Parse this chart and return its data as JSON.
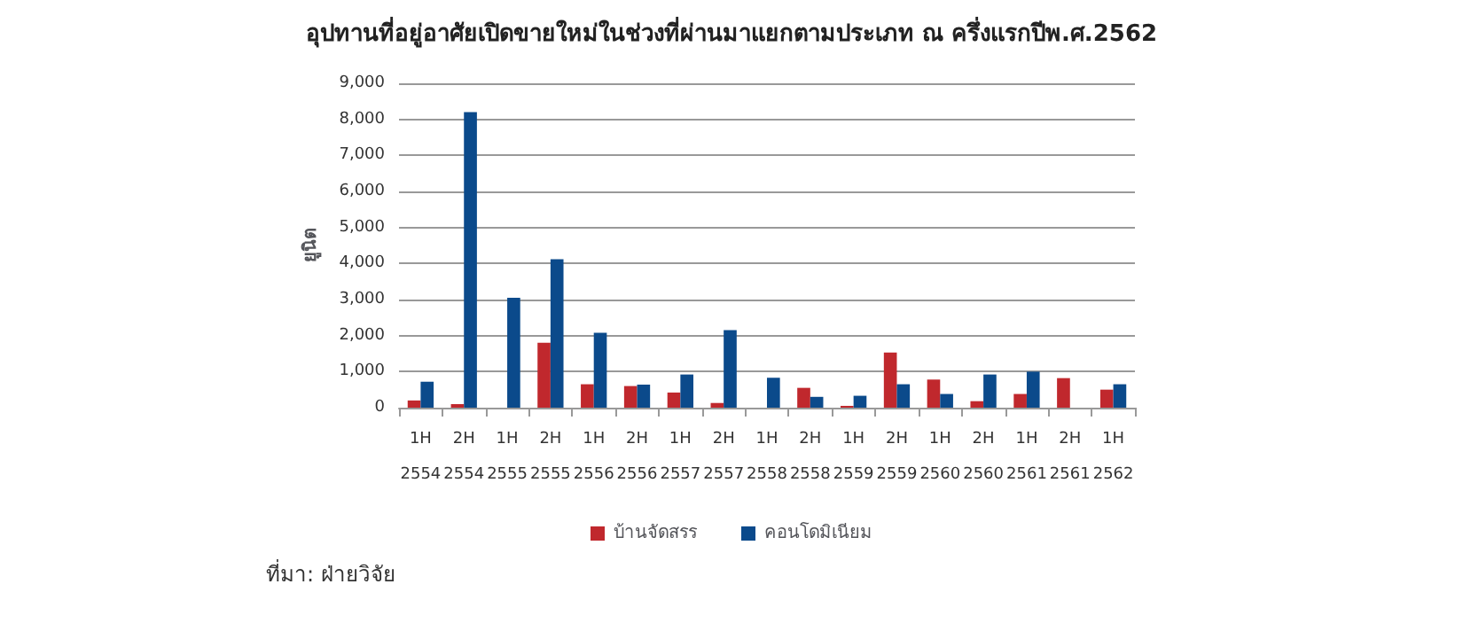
{
  "chart_data": {
    "type": "bar",
    "title": "อุปทานที่อยู่อาศัยเปิดขายใหม่ในช่วงที่ผ่านมาแยกตามประเภท ณ ครึ่งแรกปีพ.ศ.2562",
    "ylabel": "ยูนิต",
    "categories": [
      "1H\n2554",
      "2H\n2554",
      "1H\n2555",
      "2H\n2555",
      "1H\n2556",
      "2H\n2556",
      "1H\n2557",
      "2H\n2557",
      "1H\n2558",
      "2H\n2558",
      "1H\n2559",
      "2H\n2559",
      "1H\n2560",
      "2H\n2560",
      "1H\n2561",
      "2H\n2561",
      "1H\n2562"
    ],
    "series": [
      {
        "name": "บ้านจัดสรร",
        "color": "#c0282d",
        "values": [
          200,
          100,
          0,
          1800,
          650,
          600,
          420,
          130,
          0,
          550,
          50,
          1530,
          780,
          180,
          380,
          820,
          500
        ]
      },
      {
        "name": "คอนโดมิเนียม",
        "color": "#0b4a8b",
        "values": [
          720,
          8200,
          3050,
          4120,
          2080,
          640,
          920,
          2150,
          830,
          300,
          330,
          650,
          380,
          920,
          1000,
          0,
          650
        ]
      }
    ],
    "ylim": [
      0,
      9000
    ],
    "yticks": [
      0,
      {
        "value": 1000,
        "label": "1,000"
      },
      {
        "value": 2000,
        "label": "2,000"
      },
      {
        "value": 3000,
        "label": "3,000"
      },
      {
        "value": 4000,
        "label": "4,000"
      },
      {
        "value": 5000,
        "label": "5,000"
      },
      {
        "value": 6000,
        "label": "6,000"
      },
      {
        "value": 7000,
        "label": "7,000"
      },
      {
        "value": 8000,
        "label": "8,000"
      },
      {
        "value": 9000,
        "label": "9,000"
      }
    ],
    "grid": "y",
    "legend": "bottom",
    "annotations": [
      "ที่มา: ฝ่ายวิจัย"
    ]
  }
}
